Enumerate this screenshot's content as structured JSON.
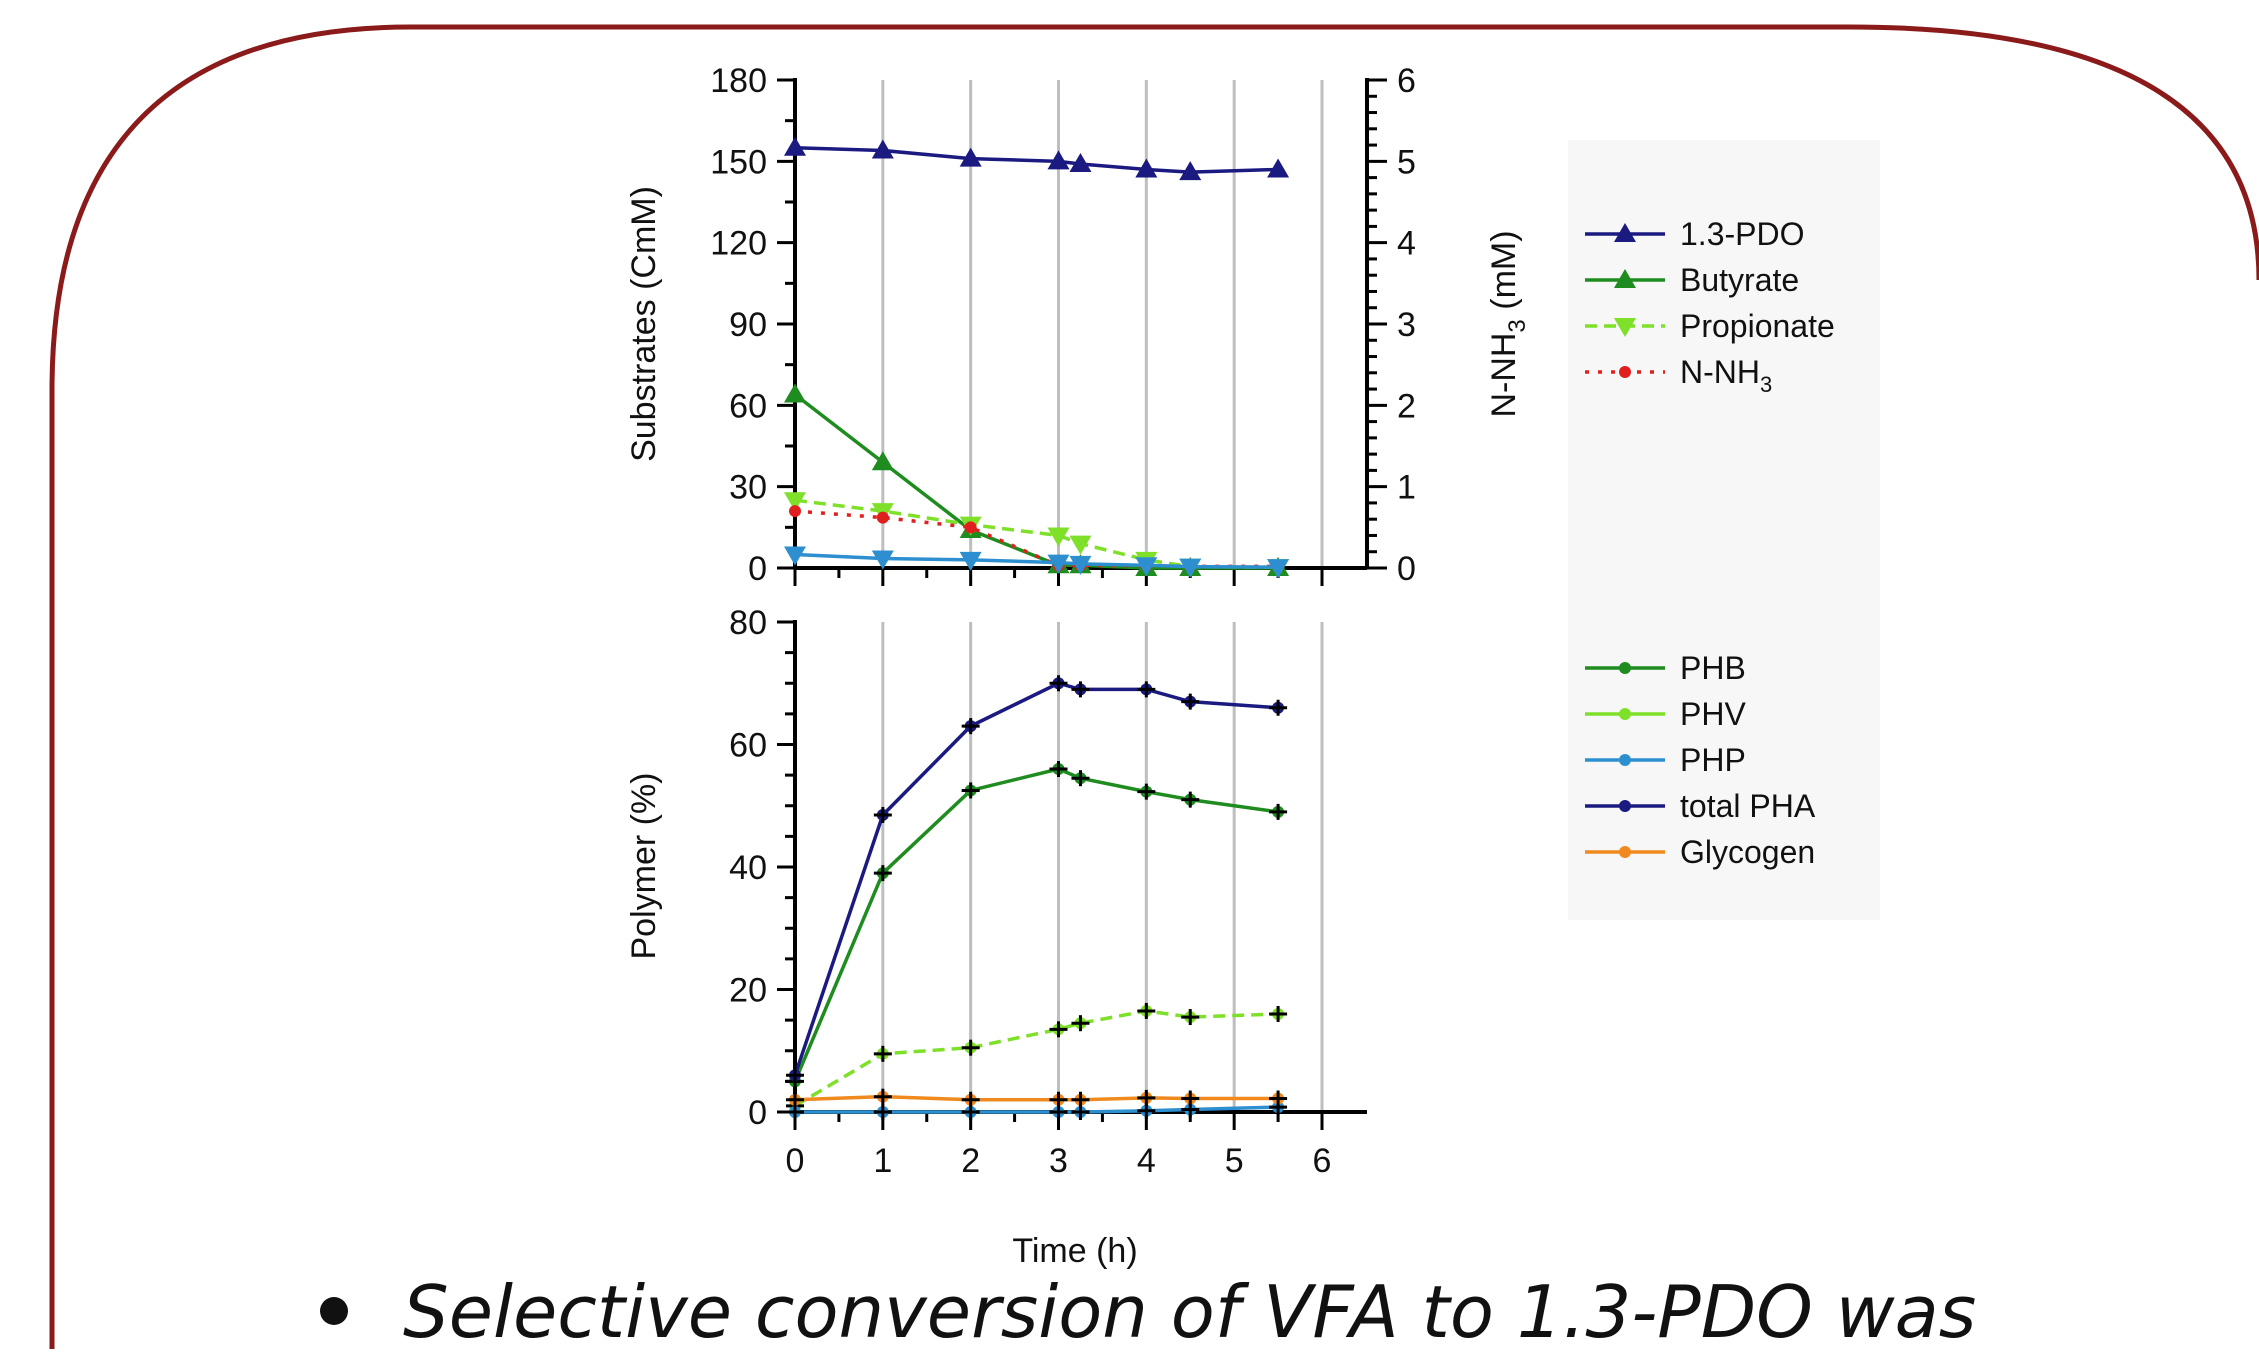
{
  "caption": {
    "text": "Selective conversion of VFA to 1.3-PDO was"
  },
  "colors": {
    "frame": "#8B1A1A",
    "pdo": "#1A1A80",
    "butyrate": "#1E8C1E",
    "propionate": "#7FE02A",
    "nnh3": "#E0201E",
    "php_line": "#2E8FD0",
    "phb": "#1E8C1E",
    "phv": "#7FE02A",
    "total_pha": "#1A1A80",
    "glycogen": "#F08A1E",
    "grid": "#BEBEBE",
    "legend_bg": "#F7F7F7"
  },
  "chart_data": [
    {
      "type": "line",
      "ylabel": "Substrates (CmM)",
      "y2label": "N-NH3 (mM)",
      "y2label_base": "N-NH",
      "y2label_sub": "3",
      "y2label_tail": " (mM)",
      "xlim": [
        0,
        6
      ],
      "ylim": [
        0,
        180
      ],
      "y2lim": [
        0,
        6
      ],
      "yticks": [
        "0",
        "30",
        "60",
        "90",
        "120",
        "150",
        "180"
      ],
      "y2ticks": [
        "0",
        "1",
        "2",
        "3",
        "4",
        "5",
        "6"
      ],
      "grid": "vertical",
      "legend_position": "right",
      "series": [
        {
          "name": "1.3-PDO",
          "axis": "left",
          "marker": "triangle-up",
          "style": "solid",
          "x": [
            0,
            1,
            2,
            3,
            3.25,
            4,
            4.5,
            5.5
          ],
          "y": [
            155,
            154,
            151,
            150,
            149,
            147,
            146,
            147
          ]
        },
        {
          "name": "Butyrate",
          "axis": "left",
          "marker": "triangle-up",
          "style": "solid",
          "x": [
            0,
            1,
            2,
            3,
            3.25,
            4,
            4.5,
            5.5
          ],
          "y": [
            64,
            39,
            14,
            1,
            1,
            0,
            0,
            0
          ]
        },
        {
          "name": "Propionate",
          "axis": "left",
          "marker": "triangle-down",
          "style": "dashed",
          "x": [
            0,
            1,
            2,
            3,
            3.25,
            4,
            4.5,
            5.5
          ],
          "y": [
            25,
            21,
            16,
            12,
            9,
            3,
            0.5,
            0.3
          ]
        },
        {
          "name": "N-NH",
          "name_sub": "3",
          "axis": "right",
          "marker": "circle",
          "style": "dotted",
          "x": [
            0,
            1,
            2,
            3,
            3.25,
            4,
            4.5,
            5.5
          ],
          "y": [
            0.7,
            0.62,
            0.5,
            0.03,
            0.03,
            0.03,
            0.02,
            0.02
          ]
        },
        {
          "axis": "left",
          "marker": "triangle-down",
          "style": "solid",
          "color_key": "php_line",
          "x": [
            0,
            1,
            2,
            3,
            3.25,
            4,
            4.5,
            5.5
          ],
          "y": [
            5,
            3.5,
            3,
            2,
            1.5,
            1,
            0.5,
            0.3
          ]
        }
      ]
    },
    {
      "type": "line",
      "ylabel": "Polymer (%)",
      "xlabel": "Time (h)",
      "xlim": [
        0,
        6
      ],
      "ylim": [
        0,
        80
      ],
      "xticks": [
        "0",
        "1",
        "2",
        "3",
        "4",
        "5",
        "6"
      ],
      "yticks": [
        "0",
        "20",
        "40",
        "60",
        "80"
      ],
      "grid": "vertical",
      "legend_position": "right",
      "series": [
        {
          "name": "PHB",
          "marker": "circle",
          "style": "solid",
          "x": [
            0,
            1,
            2,
            3,
            3.25,
            4,
            4.5,
            5.5
          ],
          "y": [
            5,
            39,
            52.5,
            56,
            54.5,
            52.3,
            51,
            49
          ]
        },
        {
          "name": "PHV",
          "marker": "circle",
          "style": "dashed",
          "x": [
            0,
            1,
            2,
            3,
            3.25,
            4,
            4.5,
            5.5
          ],
          "y": [
            1,
            9.5,
            10.5,
            13.5,
            14.5,
            16.5,
            15.5,
            16
          ]
        },
        {
          "name": "PHP",
          "marker": "circle",
          "style": "solid",
          "x": [
            0,
            1,
            2,
            3,
            3.25,
            4,
            4.5,
            5.5
          ],
          "y": [
            0,
            0,
            0,
            0,
            0,
            0.2,
            0.4,
            0.8
          ]
        },
        {
          "name": "total PHA",
          "marker": "circle",
          "style": "solid",
          "x": [
            0,
            1,
            2,
            3,
            3.25,
            4,
            4.5,
            5.5
          ],
          "y": [
            6,
            48.5,
            63,
            70,
            69,
            69,
            67,
            66
          ]
        },
        {
          "name": "Glycogen",
          "marker": "circle",
          "style": "solid",
          "x": [
            0,
            1,
            2,
            3,
            3.25,
            4,
            4.5,
            5.5
          ],
          "y": [
            2,
            2.5,
            2,
            2,
            2,
            2.3,
            2.2,
            2.2
          ]
        }
      ]
    }
  ]
}
